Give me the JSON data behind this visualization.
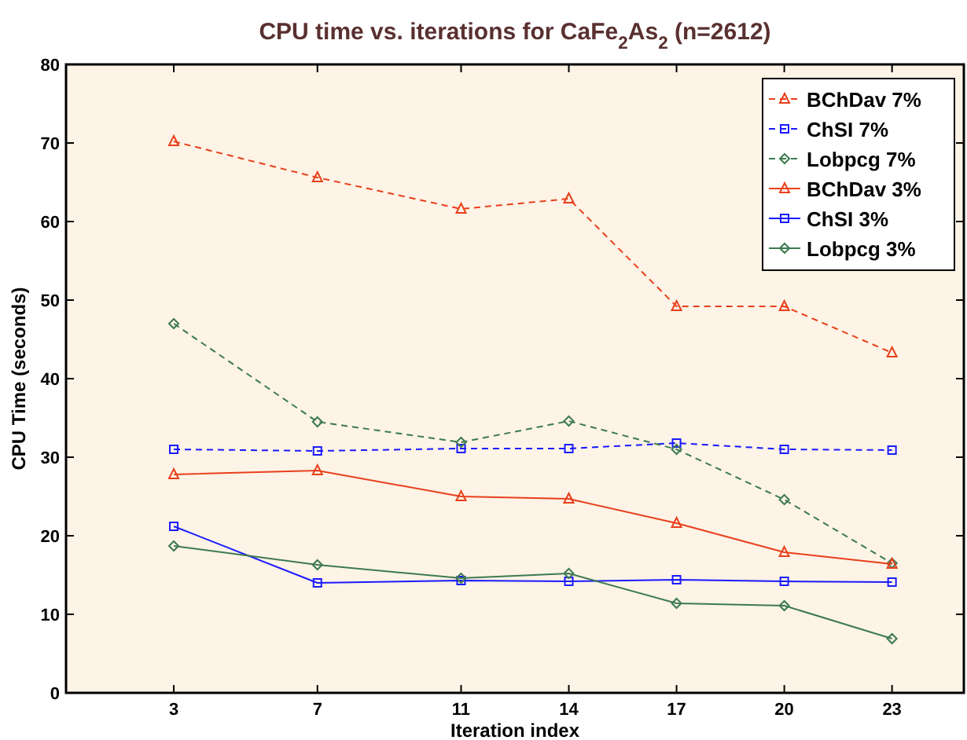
{
  "chart_data": {
    "type": "line",
    "title": "CPU time vs. iterations for CaFe$_{2}$As$_{2}$ (n=2612)",
    "xlabel": "Iteration index",
    "ylabel": "CPU Time (seconds)",
    "x": [
      3,
      7,
      11,
      14,
      17,
      20,
      23
    ],
    "xlim": [
      0,
      25
    ],
    "xticks": [
      3,
      7,
      11,
      14,
      17,
      20,
      23
    ],
    "ylim": [
      0,
      80
    ],
    "yticks": [
      0,
      10,
      20,
      30,
      40,
      50,
      60,
      70,
      80
    ],
    "grid": false,
    "legend": "top right",
    "series": [
      {
        "name": "BChDav 7%",
        "color": "#e8401c",
        "marker": "triangle",
        "line_style": "dashed",
        "values": [
          70.2,
          65.6,
          61.6,
          62.9,
          49.2,
          49.2,
          43.3
        ]
      },
      {
        "name": "ChSI 7%",
        "color": "#1a1aff",
        "marker": "square",
        "line_style": "dashed",
        "values": [
          31,
          30.8,
          31.1,
          31.1,
          31.8,
          31,
          30.9
        ]
      },
      {
        "name": "Lobpcg 7%",
        "color": "#3c7a50",
        "marker": "diamond",
        "line_style": "dashed",
        "values": [
          47,
          34.5,
          31.9,
          34.6,
          31,
          24.6,
          16.5
        ]
      },
      {
        "name": "BChDav 3%",
        "color": "#e8401c",
        "marker": "triangle",
        "line_style": "solid",
        "values": [
          27.8,
          28.3,
          25,
          24.7,
          21.6,
          17.9,
          16.4
        ]
      },
      {
        "name": "ChSI 3%",
        "color": "#1a1aff",
        "marker": "square",
        "line_style": "solid",
        "values": [
          21.2,
          14,
          14.3,
          14.2,
          14.4,
          14.2,
          14.1
        ]
      },
      {
        "name": "Lobpcg 3%",
        "color": "#3c7a50",
        "marker": "diamond",
        "line_style": "solid",
        "values": [
          18.7,
          16.3,
          14.6,
          15.2,
          11.4,
          11.1,
          6.9
        ]
      }
    ]
  }
}
